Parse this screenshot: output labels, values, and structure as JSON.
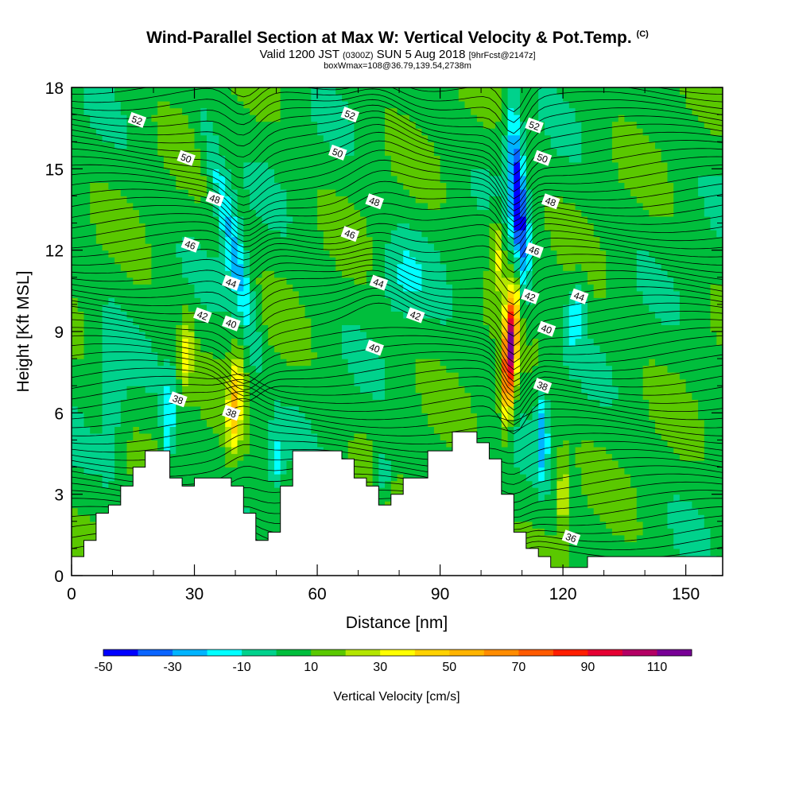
{
  "titles": {
    "main": "Wind-Parallel Section at Max W: Vertical Velocity & Pot.Temp.",
    "main_unit": "(C)",
    "valid_pre": "Valid 1200 JST",
    "valid_utc": "(0300Z)",
    "valid_post": "SUN 5 Aug 2018",
    "forecast": "[9hrFcst@2147z]",
    "box": "boxWmax=108@36.79,139.54,2738m"
  },
  "chart_data": {
    "type": "heatmap",
    "xlabel": "Distance [nm]",
    "ylabel": "Height [Kft MSL]",
    "xlim": [
      0,
      159
    ],
    "ylim": [
      0,
      18
    ],
    "x_ticks": [
      0,
      30,
      60,
      90,
      120,
      150
    ],
    "y_ticks": [
      0,
      3,
      6,
      9,
      12,
      15,
      18
    ],
    "colorbar": {
      "label": "Vertical Velocity [cm/s]",
      "tick_labels": [
        -50,
        -30,
        -10,
        10,
        30,
        50,
        70,
        90,
        110
      ],
      "levels": [
        -50,
        -40,
        -30,
        -20,
        -10,
        0,
        10,
        20,
        30,
        40,
        50,
        60,
        70,
        80,
        90,
        100,
        110,
        120
      ],
      "colors": [
        "#0000ff",
        "#0a64ff",
        "#00b4ff",
        "#00ffff",
        "#00d28c",
        "#00be3c",
        "#5ac800",
        "#b4e600",
        "#ffff00",
        "#ffd200",
        "#ffb400",
        "#ff8c00",
        "#ff5a00",
        "#ff1e00",
        "#e60032",
        "#b40064",
        "#780096"
      ]
    },
    "terrain_profile_kft": [
      [
        0,
        0.7
      ],
      [
        3,
        0.7
      ],
      [
        3,
        1.3
      ],
      [
        6,
        1.3
      ],
      [
        6,
        2.3
      ],
      [
        9,
        2.3
      ],
      [
        9,
        2.6
      ],
      [
        12,
        2.6
      ],
      [
        12,
        3.3
      ],
      [
        15,
        3.3
      ],
      [
        15,
        4.0
      ],
      [
        18,
        4.0
      ],
      [
        18,
        4.6
      ],
      [
        24,
        4.6
      ],
      [
        24,
        3.6
      ],
      [
        27,
        3.6
      ],
      [
        27,
        3.3
      ],
      [
        30,
        3.3
      ],
      [
        30,
        3.6
      ],
      [
        39,
        3.6
      ],
      [
        39,
        3.3
      ],
      [
        42,
        3.3
      ],
      [
        42,
        2.3
      ],
      [
        45,
        2.3
      ],
      [
        45,
        1.3
      ],
      [
        48,
        1.3
      ],
      [
        48,
        1.6
      ],
      [
        51,
        1.6
      ],
      [
        51,
        3.3
      ],
      [
        54,
        3.3
      ],
      [
        54,
        4.6
      ],
      [
        66,
        4.6
      ],
      [
        66,
        4.3
      ],
      [
        69,
        4.3
      ],
      [
        69,
        3.6
      ],
      [
        72,
        3.6
      ],
      [
        72,
        3.3
      ],
      [
        75,
        3.3
      ],
      [
        75,
        2.6
      ],
      [
        78,
        2.6
      ],
      [
        78,
        3.0
      ],
      [
        81,
        3.0
      ],
      [
        81,
        3.6
      ],
      [
        87,
        3.6
      ],
      [
        87,
        4.6
      ],
      [
        93,
        4.6
      ],
      [
        93,
        5.3
      ],
      [
        99,
        5.3
      ],
      [
        99,
        4.9
      ],
      [
        102,
        4.9
      ],
      [
        102,
        4.3
      ],
      [
        105,
        4.3
      ],
      [
        105,
        3.0
      ],
      [
        108,
        3.0
      ],
      [
        108,
        1.6
      ],
      [
        111,
        1.6
      ],
      [
        111,
        1.0
      ],
      [
        114,
        1.0
      ],
      [
        114,
        0.7
      ],
      [
        117,
        0.7
      ],
      [
        117,
        0.3
      ],
      [
        126,
        0.3
      ],
      [
        126,
        0.7
      ],
      [
        159,
        0.7
      ]
    ],
    "theta_contour_labels": [
      {
        "value": "52",
        "x": 16,
        "y": 16.8
      },
      {
        "value": "52",
        "x": 68,
        "y": 17.0
      },
      {
        "value": "52",
        "x": 113,
        "y": 16.6
      },
      {
        "value": "50",
        "x": 28,
        "y": 15.4
      },
      {
        "value": "50",
        "x": 65,
        "y": 15.6
      },
      {
        "value": "50",
        "x": 115,
        "y": 15.4
      },
      {
        "value": "48",
        "x": 35,
        "y": 13.9
      },
      {
        "value": "48",
        "x": 74,
        "y": 13.8
      },
      {
        "value": "48",
        "x": 117,
        "y": 13.8
      },
      {
        "value": "46",
        "x": 29,
        "y": 12.2
      },
      {
        "value": "46",
        "x": 68,
        "y": 12.6
      },
      {
        "value": "46",
        "x": 113,
        "y": 12.0
      },
      {
        "value": "44",
        "x": 39,
        "y": 10.8
      },
      {
        "value": "44",
        "x": 75,
        "y": 10.8
      },
      {
        "value": "44",
        "x": 124,
        "y": 10.3
      },
      {
        "value": "42",
        "x": 32,
        "y": 9.6
      },
      {
        "value": "42",
        "x": 84,
        "y": 9.6
      },
      {
        "value": "42",
        "x": 112,
        "y": 10.3
      },
      {
        "value": "40",
        "x": 39,
        "y": 9.3
      },
      {
        "value": "40",
        "x": 74,
        "y": 8.4
      },
      {
        "value": "40",
        "x": 116,
        "y": 9.1
      },
      {
        "value": "38",
        "x": 26,
        "y": 6.5
      },
      {
        "value": "38",
        "x": 39,
        "y": 6.0
      },
      {
        "value": "38",
        "x": 115,
        "y": 7.0
      },
      {
        "value": "36",
        "x": 122,
        "y": 1.4
      }
    ],
    "w_features": [
      {
        "name": "updraft core",
        "x": 107,
        "y_range": [
          5.5,
          10.5
        ],
        "max": 108
      },
      {
        "name": "downdraft core",
        "x": 108,
        "y_range": [
          11,
          16.5
        ],
        "min": -45
      },
      {
        "name": "updraft",
        "x": 40,
        "y_range": [
          4.5,
          8.5
        ],
        "max": 45
      },
      {
        "name": "downdraft band",
        "x": 41,
        "y_range": [
          9,
          13
        ],
        "min": -30
      }
    ]
  }
}
